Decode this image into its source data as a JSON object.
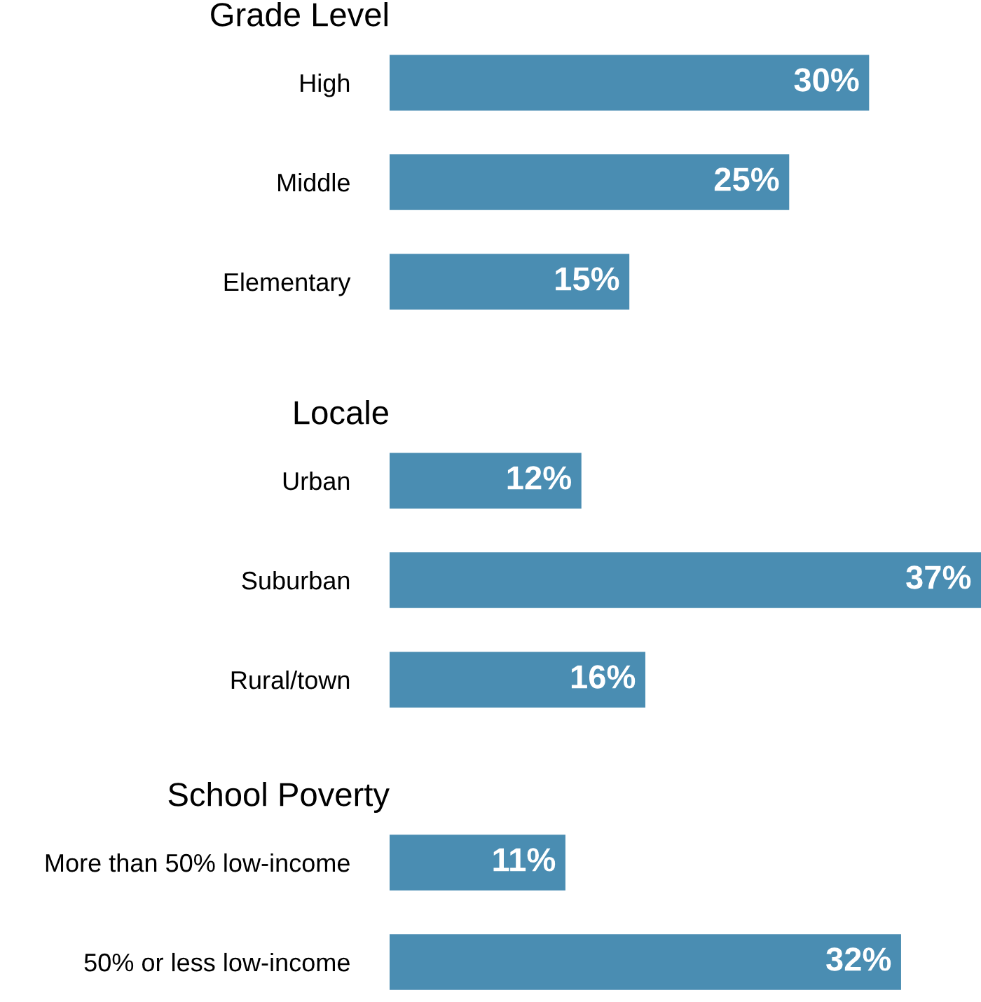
{
  "chart_data": [
    {
      "type": "bar",
      "orientation": "horizontal",
      "title": "Grade Level",
      "categories": [
        "High",
        "Middle",
        "Elementary"
      ],
      "values": [
        30,
        25,
        15
      ],
      "value_labels": [
        "30%",
        "25%",
        "15%"
      ],
      "color": "#4a8db2",
      "grid": false,
      "legend": false
    },
    {
      "type": "bar",
      "orientation": "horizontal",
      "title": "Locale",
      "categories": [
        "Urban",
        "Suburban",
        "Rural/town"
      ],
      "values": [
        12,
        37,
        16
      ],
      "value_labels": [
        "12%",
        "37%",
        "16%"
      ],
      "color": "#4a8db2",
      "grid": false,
      "legend": false
    },
    {
      "type": "bar",
      "orientation": "horizontal",
      "title": "School Poverty",
      "categories": [
        "More than 50% low-income",
        "50% or less low-income"
      ],
      "values": [
        11,
        32
      ],
      "value_labels": [
        "11%",
        "32%"
      ],
      "color": "#4a8db2",
      "grid": false,
      "legend": false
    }
  ]
}
